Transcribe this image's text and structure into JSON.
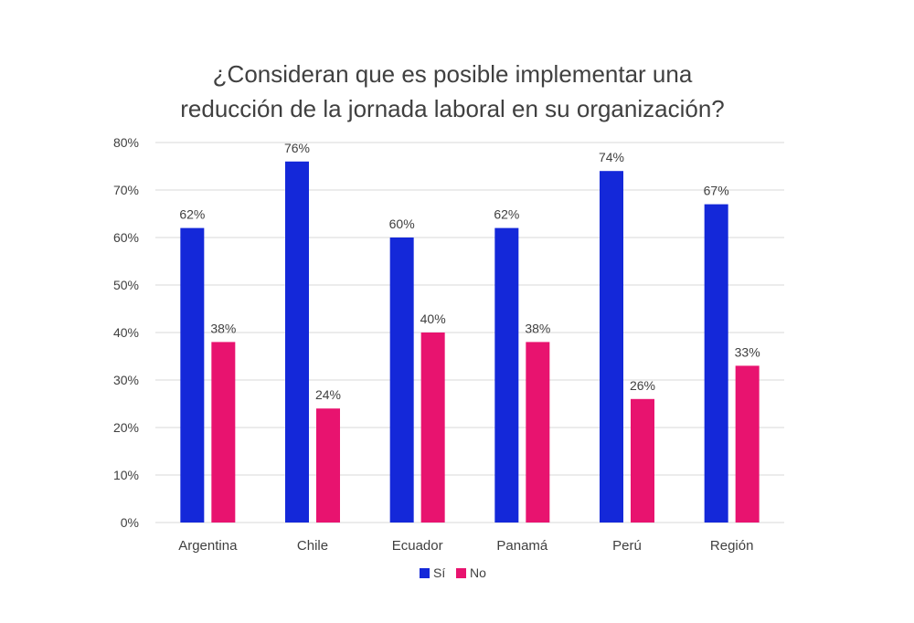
{
  "chart_data": {
    "type": "bar",
    "title_line1": "¿Consideran que es posible implementar una",
    "title_line2": "reducción de la jornada laboral en su organización?",
    "categories": [
      "Argentina",
      "Chile",
      "Ecuador",
      "Panamá",
      "Perú",
      "Región"
    ],
    "series": [
      {
        "name": "Sí",
        "color": "#1428d9",
        "values": [
          62,
          76,
          60,
          62,
          74,
          67
        ],
        "labels": [
          "62%",
          "76%",
          "60%",
          "62%",
          "74%",
          "67%"
        ]
      },
      {
        "name": "No",
        "color": "#e8136f",
        "values": [
          38,
          24,
          40,
          38,
          26,
          33
        ],
        "labels": [
          "38%",
          "24%",
          "40%",
          "38%",
          "26%",
          "33%"
        ]
      }
    ],
    "ylim": [
      0,
      80
    ],
    "yticks": [
      0,
      10,
      20,
      30,
      40,
      50,
      60,
      70,
      80
    ],
    "ytick_labels": [
      "0%",
      "10%",
      "20%",
      "30%",
      "40%",
      "50%",
      "60%",
      "70%",
      "80%"
    ],
    "grid": true,
    "legend_position": "bottom-center",
    "gridline_color": "#d9d9d9"
  }
}
